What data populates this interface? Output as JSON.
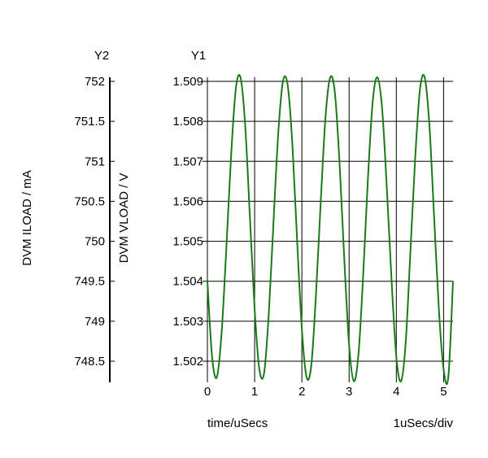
{
  "chart_data": {
    "type": "line",
    "y1_header": "Y1",
    "y2_header": "Y2",
    "xlabel": "time/uSecs",
    "x_scale_note": "1uSecs/div",
    "y1_label": "DVM VLOAD / V",
    "y2_label": "DVM ILOAD / mA",
    "xlim": [
      0,
      5.2
    ],
    "x_ticks": [
      "0",
      "1",
      "2",
      "3",
      "4",
      "5"
    ],
    "y1_lim": [
      1.5014,
      1.5092
    ],
    "y1_ticks": [
      "1.502",
      "1.503",
      "1.504",
      "1.505",
      "1.506",
      "1.507",
      "1.508",
      "1.509"
    ],
    "y2_lim": [
      748.2,
      752.1
    ],
    "y2_ticks": [
      "748.5",
      "749",
      "749.5",
      "750",
      "750.5",
      "751",
      "751.5",
      "752"
    ],
    "grid": true,
    "colors": {
      "series": "#1a7a1a",
      "grid": "#000000"
    },
    "series": [
      {
        "axis": "Y1",
        "x": [
          0,
          0.1,
          0.2,
          0.3,
          0.4,
          0.5,
          0.6,
          0.7,
          0.8,
          0.9,
          1.0,
          1.1,
          1.2,
          1.3,
          1.4,
          1.5,
          1.6,
          1.7,
          1.8,
          1.9,
          2.0,
          2.1,
          2.2,
          2.3,
          2.4,
          2.5,
          2.6,
          2.7,
          2.8,
          2.9,
          3.0,
          3.1,
          3.2,
          3.3,
          3.4,
          3.5,
          3.6,
          3.7,
          3.8,
          3.9,
          4.0,
          4.1,
          4.2,
          4.3,
          4.4,
          4.5,
          4.6,
          4.7,
          4.8,
          4.9,
          5.0,
          5.1,
          5.2
        ],
        "y": [
          1.504,
          1.5021,
          1.5016,
          1.5027,
          1.5048,
          1.5071,
          1.5088,
          1.5091,
          1.5079,
          1.5056,
          1.5033,
          1.5018,
          1.5017,
          1.5032,
          1.5055,
          1.5077,
          1.509,
          1.5089,
          1.5074,
          1.505,
          1.5028,
          1.5016,
          1.5019,
          1.5037,
          1.506,
          1.5081,
          1.5091,
          1.5087,
          1.5069,
          1.5045,
          1.5024,
          1.5015,
          1.5022,
          1.5042,
          1.5066,
          1.5085,
          1.5091,
          1.5083,
          1.5063,
          1.504,
          1.5021,
          1.5015,
          1.5025,
          1.5048,
          1.5071,
          1.5088,
          1.5091,
          1.5079,
          1.5056,
          1.5033,
          1.5018,
          1.5016,
          1.504
        ]
      }
    ]
  }
}
